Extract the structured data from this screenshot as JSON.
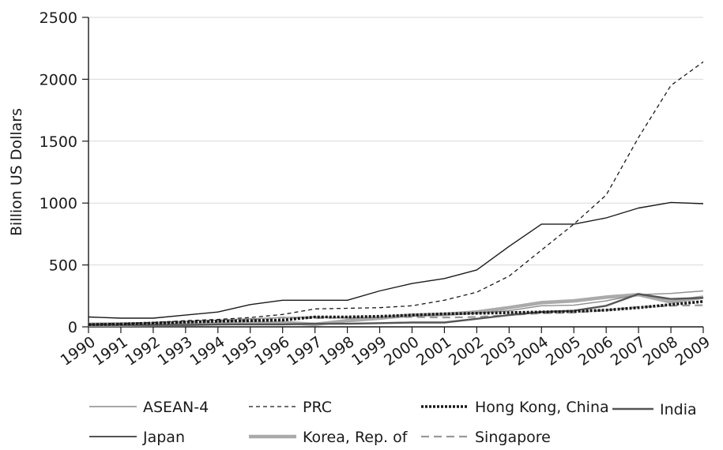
{
  "chart_data": {
    "type": "line",
    "title": "",
    "xlabel": "",
    "ylabel": "Billion US Dollars",
    "ylim": [
      0,
      2500
    ],
    "yticks": [
      0,
      500,
      1000,
      1500,
      2000,
      2500
    ],
    "categories": [
      "1990",
      "1991",
      "1992",
      "1993",
      "1994",
      "1995",
      "1996",
      "1997",
      "1998",
      "1999",
      "2000",
      "2001",
      "2002",
      "2003",
      "2004",
      "2005",
      "2006",
      "2007",
      "2008",
      "2009"
    ],
    "grid": "horizontal",
    "legend_position": "bottom",
    "series": [
      {
        "name": "ASEAN-4",
        "color": "#8c8c8c",
        "style": "solid-thin",
        "values": [
          30,
          32,
          35,
          45,
          55,
          65,
          75,
          80,
          70,
          75,
          90,
          95,
          110,
          130,
          170,
          175,
          210,
          260,
          270,
          290
        ]
      },
      {
        "name": "PRC",
        "color": "#1a1a1a",
        "style": "dashed-thin",
        "values": [
          22,
          25,
          35,
          50,
          60,
          75,
          100,
          145,
          150,
          155,
          170,
          215,
          280,
          410,
          620,
          830,
          1065,
          1530,
          1950,
          2140
        ]
      },
      {
        "name": "Hong Kong, China",
        "color": "#1a1a1a",
        "style": "dotted-thick",
        "values": [
          18,
          22,
          30,
          38,
          45,
          50,
          55,
          80,
          80,
          85,
          95,
          105,
          110,
          115,
          120,
          125,
          135,
          155,
          180,
          205
        ]
      },
      {
        "name": "India",
        "color": "#555555",
        "style": "solid-medium",
        "values": [
          15,
          15,
          15,
          15,
          20,
          20,
          20,
          25,
          25,
          30,
          35,
          35,
          65,
          95,
          120,
          130,
          170,
          265,
          225,
          235
        ]
      },
      {
        "name": "Japan",
        "color": "#1a1a1a",
        "style": "solid-thin",
        "values": [
          80,
          70,
          70,
          95,
          120,
          180,
          215,
          215,
          215,
          290,
          350,
          390,
          460,
          650,
          830,
          830,
          880,
          960,
          1005,
          995
        ]
      },
      {
        "name": "Korea, Rep. of",
        "color": "#aaaaaa",
        "style": "solid-thick",
        "values": [
          15,
          15,
          18,
          20,
          25,
          30,
          35,
          20,
          50,
          70,
          95,
          100,
          120,
          155,
          195,
          210,
          240,
          260,
          200,
          240
        ]
      },
      {
        "name": "Singapore",
        "color": "#999999",
        "style": "dashed-medium",
        "values": [
          25,
          28,
          30,
          40,
          45,
          55,
          75,
          70,
          75,
          75,
          80,
          75,
          80,
          95,
          110,
          115,
          135,
          160,
          170,
          175
        ]
      }
    ]
  }
}
